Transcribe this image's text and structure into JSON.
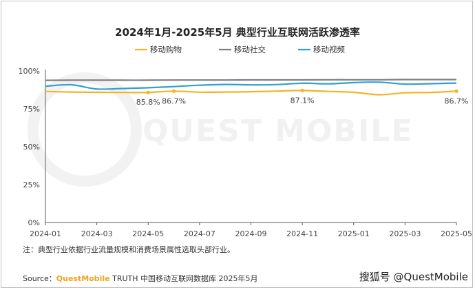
{
  "chart_data": {
    "type": "line",
    "title": "2024年1月-2025年5月 典型行业互联网活跃渗透率",
    "x": [
      "2024-01",
      "2024-02",
      "2024-03",
      "2024-04",
      "2024-05",
      "2024-06",
      "2024-07",
      "2024-08",
      "2024-09",
      "2024-10",
      "2024-11",
      "2024-12",
      "2025-01",
      "2025-02",
      "2025-03",
      "2025-04",
      "2025-05"
    ],
    "x_tick_labels": [
      "2024-01",
      "2024-03",
      "2024-05",
      "2024-07",
      "2024-09",
      "2024-11",
      "2025-01",
      "2025-03",
      "2025-05"
    ],
    "y_tick_labels": [
      "0%",
      "25%",
      "50%",
      "75%",
      "100%"
    ],
    "ylim": [
      0,
      100
    ],
    "grid": false,
    "legend_position": "top",
    "series": [
      {
        "name": "移动购物",
        "color": "#f5b324",
        "values": [
          86.5,
          86.1,
          85.9,
          85.8,
          85.8,
          86.7,
          86.0,
          86.1,
          86.3,
          86.7,
          87.1,
          86.5,
          85.9,
          84.3,
          85.6,
          85.8,
          86.7
        ]
      },
      {
        "name": "移动社交",
        "color": "#7f7f7f",
        "values": [
          93.8,
          93.9,
          93.9,
          93.9,
          93.9,
          94.0,
          94.0,
          94.0,
          94.1,
          94.1,
          94.1,
          94.2,
          94.2,
          94.2,
          94.3,
          94.3,
          94.3
        ]
      },
      {
        "name": "移动视频",
        "color": "#2e9fd6",
        "values": [
          89.9,
          90.9,
          88.1,
          88.4,
          88.9,
          89.7,
          90.6,
          91.1,
          90.8,
          91.0,
          91.9,
          91.5,
          92.3,
          92.6,
          91.3,
          91.6,
          92.0
        ]
      }
    ],
    "data_labels": [
      {
        "series": "移动购物",
        "x": "2024-05",
        "text": "85.8%"
      },
      {
        "series": "移动购物",
        "x": "2024-06",
        "text": "86.7%"
      },
      {
        "series": "移动购物",
        "x": "2024-11",
        "text": "87.1%"
      },
      {
        "series": "移动购物",
        "x": "2025-05",
        "text": "86.7%"
      }
    ]
  },
  "note": "注：典型行业依据行业流量规模和消费场景属性选取头部行业。",
  "source": {
    "prefix": "Source：",
    "brand": "QuestMobile",
    "rest": " TRUTH 中国移动互联网数据库 2025年5月"
  },
  "watermark": "QUEST MOBILE",
  "credit": "搜狐号 @QuestMobile"
}
